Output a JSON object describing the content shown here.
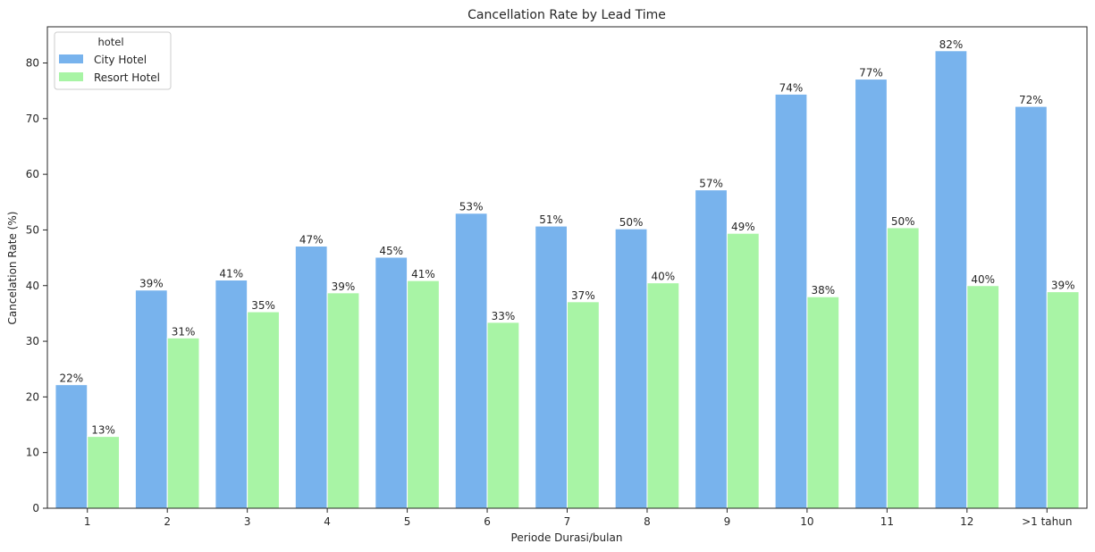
{
  "chart_data": {
    "type": "bar",
    "title": "Cancellation Rate by Lead Time",
    "xlabel": "Periode Durasi/bulan",
    "ylabel": "Cancelation Rate (%)",
    "categories": [
      "1",
      "2",
      "3",
      "4",
      "5",
      "6",
      "7",
      "8",
      "9",
      "10",
      "11",
      "12",
      ">1 tahun"
    ],
    "series": [
      {
        "name": "City Hotel",
        "color": "#78b3ed",
        "values": [
          22.2,
          39.2,
          41.0,
          47.1,
          45.1,
          53.0,
          50.7,
          50.2,
          57.2,
          74.4,
          77.1,
          82.2,
          72.2
        ],
        "labels": [
          "22%",
          "39%",
          "41%",
          "47%",
          "45%",
          "53%",
          "51%",
          "50%",
          "57%",
          "74%",
          "77%",
          "82%",
          "72%"
        ]
      },
      {
        "name": "Resort Hotel",
        "color": "#a8f4a5",
        "values": [
          12.9,
          30.6,
          35.3,
          38.7,
          40.9,
          33.4,
          37.1,
          40.5,
          49.4,
          38.0,
          50.4,
          40.0,
          38.9
        ],
        "labels": [
          "13%",
          "31%",
          "35%",
          "39%",
          "41%",
          "33%",
          "37%",
          "40%",
          "49%",
          "38%",
          "50%",
          "40%",
          "39%"
        ]
      }
    ],
    "ylim": [
      0,
      86.5
    ],
    "yticks": [
      0,
      10,
      20,
      30,
      40,
      50,
      60,
      70,
      80
    ],
    "grid": false,
    "legend": {
      "title": "hotel",
      "placement": "top-left"
    }
  }
}
